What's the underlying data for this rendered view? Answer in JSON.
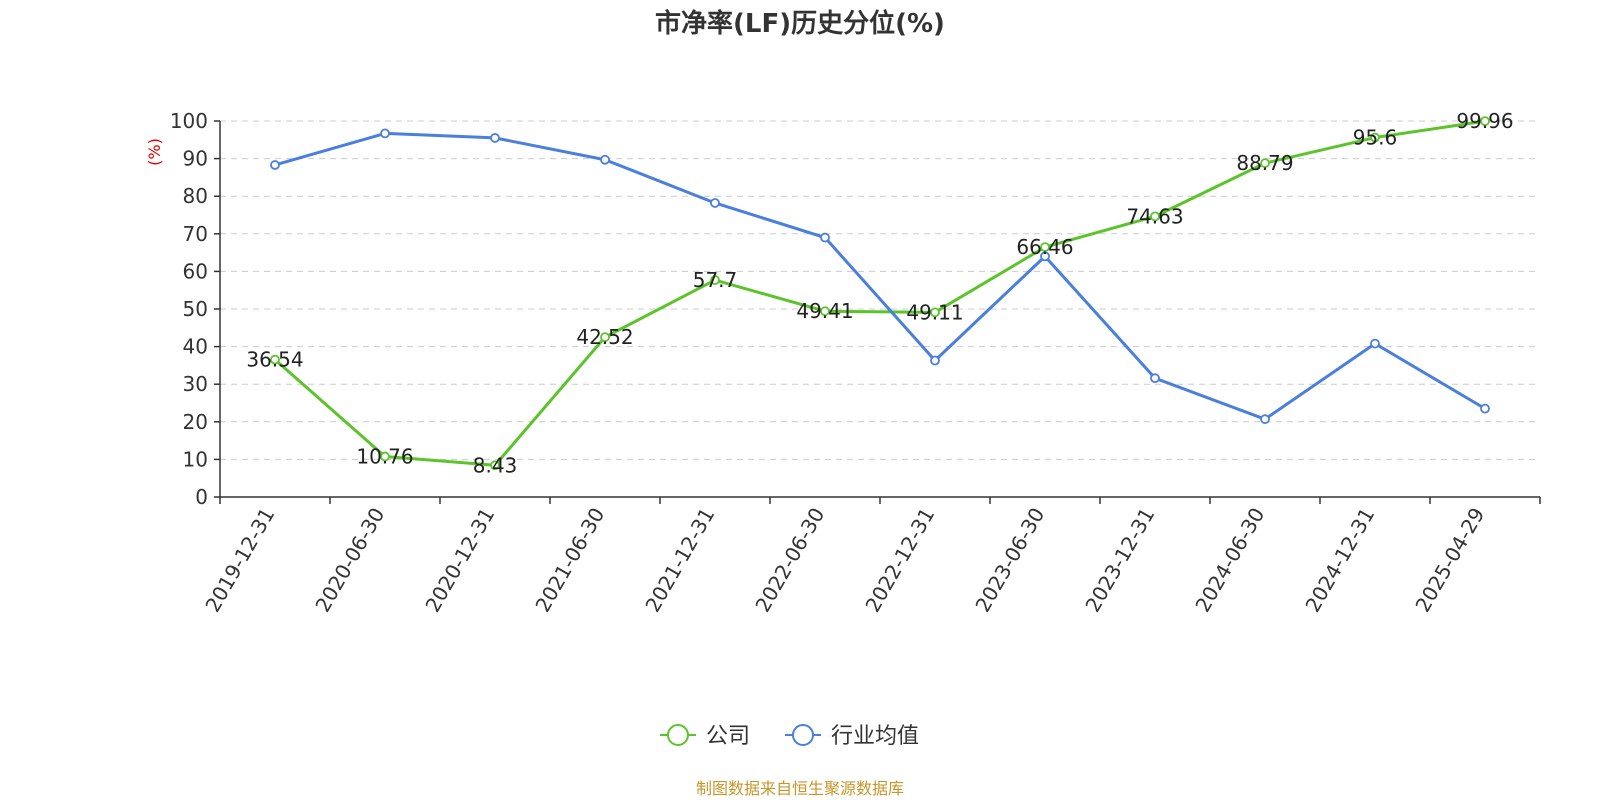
{
  "chart_data": {
    "type": "line",
    "title": "市净率(LF)历史分位(%)",
    "ylabel": "(%)",
    "ylim": [
      0,
      100
    ],
    "yticks": [
      0,
      10,
      20,
      30,
      40,
      50,
      60,
      70,
      80,
      90,
      100
    ],
    "grid": true,
    "legend_position": "bottom-center",
    "categories": [
      "2019-12-31",
      "2020-06-30",
      "2020-12-31",
      "2021-06-30",
      "2021-12-31",
      "2022-06-30",
      "2022-12-31",
      "2023-06-30",
      "2023-12-31",
      "2024-06-30",
      "2024-12-31",
      "2025-04-29"
    ],
    "series": [
      {
        "name": "公司",
        "color": "#5cc42b",
        "values": [
          36.54,
          10.76,
          8.43,
          42.52,
          57.7,
          49.41,
          49.11,
          66.46,
          74.63,
          88.79,
          95.6,
          99.96
        ],
        "labels": [
          "36.54",
          "10.76",
          "8.43",
          "42.52",
          "57.7",
          "49.41",
          "49.11",
          "66.46",
          "74.63",
          "88.79",
          "95.6",
          "99.96"
        ]
      },
      {
        "name": "行业均值",
        "color": "#4a7fdc",
        "values": [
          88.3,
          96.7,
          95.5,
          89.7,
          78.2,
          69.0,
          36.3,
          64.0,
          31.6,
          20.7,
          40.8,
          23.5
        ]
      }
    ],
    "source": "制图数据来自恒生聚源数据库"
  }
}
